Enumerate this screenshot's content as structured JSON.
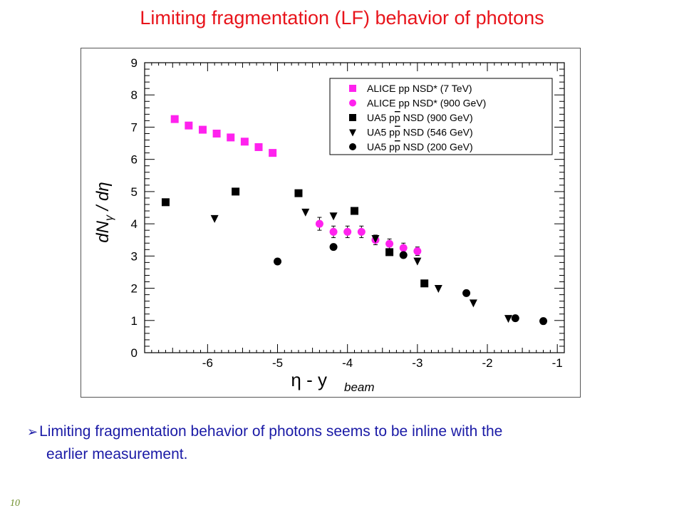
{
  "slide": {
    "title": "Limiting fragmentation (LF) behavior of photons",
    "bullet_symbol": "➢",
    "bullet_line1": "Limiting fragmentation behavior of photons seems to be inline with the",
    "bullet_line2": "earlier measurement.",
    "slide_number": "10",
    "colors": {
      "title": "#e8141b",
      "bullet_text": "#1a1aa6",
      "slide_number": "#6e8e2a",
      "alice": "#ff22ee",
      "ua5": "#000000"
    }
  },
  "chart_data": {
    "type": "scatter",
    "title": "",
    "xlabel": "η - y",
    "xlabel_subscript": "beam",
    "ylabel": "dN",
    "ylabel_subscript": "γ",
    "ylabel_suffix": " / dη",
    "xlim": [
      -6.9,
      -0.9
    ],
    "ylim": [
      0,
      9
    ],
    "x_ticks": [
      "-6",
      "-5",
      "-4",
      "-3",
      "-2",
      "-1"
    ],
    "y_ticks": [
      "0",
      "1",
      "2",
      "3",
      "4",
      "5",
      "6",
      "7",
      "8",
      "9"
    ],
    "grid": false,
    "legend_position": "top-right",
    "series": [
      {
        "name": "ALICE pp NSD* (7 TeV)",
        "marker": "square",
        "color": "#ff22ee",
        "x": [
          -6.47,
          -6.27,
          -6.07,
          -5.87,
          -5.67,
          -5.47,
          -5.27,
          -5.07
        ],
        "y": [
          7.25,
          7.05,
          6.92,
          6.8,
          6.68,
          6.55,
          6.38,
          6.2
        ],
        "err": [
          0,
          0,
          0,
          0,
          0,
          0,
          0,
          0
        ]
      },
      {
        "name": "ALICE pp NSD* (900 GeV)",
        "marker": "circle",
        "color": "#ff22ee",
        "x": [
          -4.4,
          -4.2,
          -4.0,
          -3.8,
          -3.6,
          -3.4,
          -3.2,
          -3.0
        ],
        "y": [
          4.0,
          3.75,
          3.75,
          3.75,
          3.5,
          3.38,
          3.25,
          3.15
        ],
        "err": [
          0.2,
          0.18,
          0.18,
          0.18,
          0.15,
          0.15,
          0.15,
          0.13
        ]
      },
      {
        "name": "UA5 pp NSD (900 GeV)",
        "marker": "square",
        "color": "#000000",
        "x": [
          -6.6,
          -5.6,
          -4.7,
          -3.9,
          -3.4,
          -2.9
        ],
        "y": [
          4.67,
          5.0,
          4.95,
          4.4,
          3.12,
          2.15
        ],
        "err": [
          0,
          0,
          0,
          0,
          0,
          0
        ]
      },
      {
        "name": "UA5 pp NSD (546 GeV)",
        "marker": "triangle-down",
        "color": "#000000",
        "x": [
          -5.9,
          -4.6,
          -4.2,
          -3.6,
          -3.0,
          -2.7,
          -2.2,
          -1.7
        ],
        "y": [
          4.17,
          4.37,
          4.25,
          3.55,
          2.85,
          2.0,
          1.55,
          1.07
        ],
        "err": [
          0,
          0,
          0,
          0,
          0,
          0,
          0,
          0
        ]
      },
      {
        "name": "UA5 pp NSD (200 GeV)",
        "marker": "circle",
        "color": "#000000",
        "x": [
          -5.0,
          -4.2,
          -3.2,
          -2.3,
          -1.6,
          -1.2
        ],
        "y": [
          2.83,
          3.28,
          3.03,
          1.85,
          1.07,
          0.98
        ],
        "err": [
          0,
          0,
          0,
          0,
          0,
          0
        ]
      }
    ],
    "legend": [
      {
        "label_pre": "ALICE pp NSD* (7 TeV)",
        "label_bar": "",
        "label_post": ""
      },
      {
        "label_pre": "ALICE pp NSD* (900 GeV)",
        "label_bar": "",
        "label_post": ""
      },
      {
        "label_pre": "UA5 p",
        "label_bar": "p",
        "label_post": " NSD (900 GeV)"
      },
      {
        "label_pre": "UA5 p",
        "label_bar": "p",
        "label_post": " NSD (546 GeV)"
      },
      {
        "label_pre": "UA5 p",
        "label_bar": "p",
        "label_post": " NSD (200 GeV)"
      }
    ]
  }
}
